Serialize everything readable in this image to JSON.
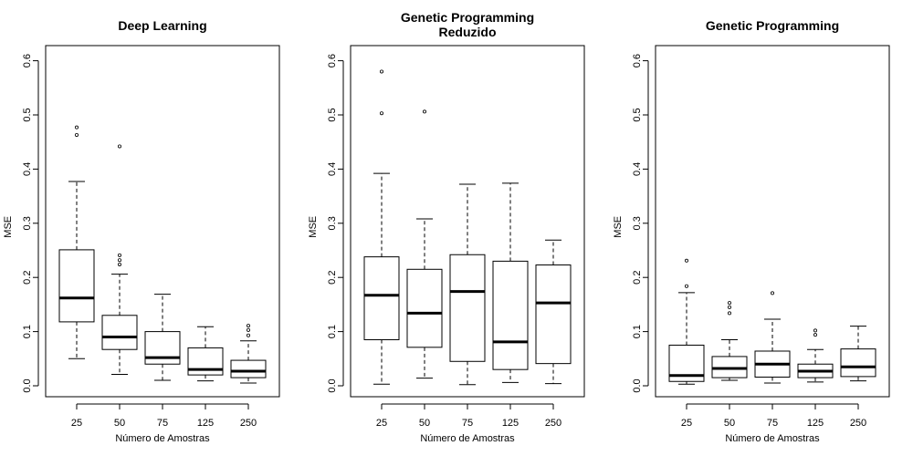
{
  "chart_data": [
    {
      "type": "box",
      "title": [
        "Deep Learning"
      ],
      "xlabel": "Número de Amostras",
      "ylabel": "MSE",
      "categories": [
        "25",
        "50",
        "75",
        "125",
        "250"
      ],
      "ylim": [
        0,
        0.6
      ],
      "yticks": [
        "0.0",
        "0.1",
        "0.2",
        "0.3",
        "0.4",
        "0.5",
        "0.6"
      ],
      "boxes": [
        {
          "whisker_low": 0.05,
          "q1": 0.118,
          "median": 0.162,
          "q3": 0.251,
          "whisker_high": 0.377,
          "outliers": [
            0.463,
            0.477
          ]
        },
        {
          "whisker_low": 0.021,
          "q1": 0.067,
          "median": 0.09,
          "q3": 0.13,
          "whisker_high": 0.206,
          "outliers": [
            0.224,
            0.232,
            0.241,
            0.442
          ]
        },
        {
          "whisker_low": 0.01,
          "q1": 0.04,
          "median": 0.052,
          "q3": 0.1,
          "whisker_high": 0.169,
          "outliers": []
        },
        {
          "whisker_low": 0.009,
          "q1": 0.02,
          "median": 0.03,
          "q3": 0.07,
          "whisker_high": 0.109,
          "outliers": []
        },
        {
          "whisker_low": 0.005,
          "q1": 0.015,
          "median": 0.027,
          "q3": 0.047,
          "whisker_high": 0.083,
          "outliers": [
            0.093,
            0.103,
            0.111
          ]
        }
      ]
    },
    {
      "type": "box",
      "title": [
        "Genetic Programming",
        "Reduzido"
      ],
      "xlabel": "Número de Amostras",
      "ylabel": "MSE",
      "categories": [
        "25",
        "50",
        "75",
        "125",
        "250"
      ],
      "ylim": [
        0,
        0.6
      ],
      "yticks": [
        "0.0",
        "0.1",
        "0.2",
        "0.3",
        "0.4",
        "0.5",
        "0.6"
      ],
      "boxes": [
        {
          "whisker_low": 0.003,
          "q1": 0.085,
          "median": 0.167,
          "q3": 0.238,
          "whisker_high": 0.392,
          "outliers": [
            0.503,
            0.58
          ]
        },
        {
          "whisker_low": 0.014,
          "q1": 0.071,
          "median": 0.134,
          "q3": 0.215,
          "whisker_high": 0.308,
          "outliers": [
            0.506
          ]
        },
        {
          "whisker_low": 0.002,
          "q1": 0.045,
          "median": 0.174,
          "q3": 0.242,
          "whisker_high": 0.372,
          "outliers": []
        },
        {
          "whisker_low": 0.006,
          "q1": 0.03,
          "median": 0.081,
          "q3": 0.23,
          "whisker_high": 0.374,
          "outliers": []
        },
        {
          "whisker_low": 0.004,
          "q1": 0.041,
          "median": 0.153,
          "q3": 0.223,
          "whisker_high": 0.269,
          "outliers": []
        }
      ]
    },
    {
      "type": "box",
      "title": [
        "Genetic Programming"
      ],
      "xlabel": "Número de Amostras",
      "ylabel": "MSE",
      "categories": [
        "25",
        "50",
        "75",
        "125",
        "250"
      ],
      "ylim": [
        0,
        0.6
      ],
      "yticks": [
        "0.0",
        "0.1",
        "0.2",
        "0.3",
        "0.4",
        "0.5",
        "0.6"
      ],
      "boxes": [
        {
          "whisker_low": 0.003,
          "q1": 0.008,
          "median": 0.019,
          "q3": 0.075,
          "whisker_high": 0.172,
          "outliers": [
            0.184,
            0.231
          ]
        },
        {
          "whisker_low": 0.01,
          "q1": 0.015,
          "median": 0.032,
          "q3": 0.054,
          "whisker_high": 0.085,
          "outliers": [
            0.134,
            0.145,
            0.153
          ]
        },
        {
          "whisker_low": 0.005,
          "q1": 0.016,
          "median": 0.04,
          "q3": 0.064,
          "whisker_high": 0.123,
          "outliers": [
            0.171
          ]
        },
        {
          "whisker_low": 0.007,
          "q1": 0.015,
          "median": 0.027,
          "q3": 0.04,
          "whisker_high": 0.067,
          "outliers": [
            0.094,
            0.102
          ]
        },
        {
          "whisker_low": 0.009,
          "q1": 0.017,
          "median": 0.035,
          "q3": 0.068,
          "whisker_high": 0.11,
          "outliers": []
        }
      ]
    }
  ]
}
